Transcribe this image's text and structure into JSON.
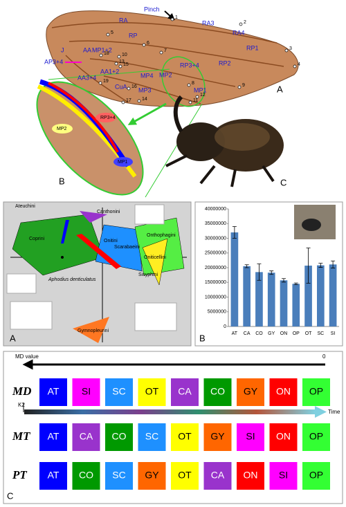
{
  "figure": {
    "wing_panel": {
      "panel_labels": [
        "A",
        "B",
        "C"
      ],
      "vein_labels": [
        "Pinch",
        "RA",
        "RA3",
        "RA4",
        "RP",
        "RP1",
        "RP2",
        "RP3+4",
        "MP1+2",
        "MP2",
        "MP4",
        "MP3",
        "MP1",
        "AA",
        "AA1+2",
        "AA3+4",
        "AP3+4",
        "J",
        "CuA"
      ],
      "point_numbers": [
        "1",
        "2",
        "3",
        "4",
        "5",
        "6",
        "7",
        "8",
        "9",
        "10",
        "11",
        "12",
        "13",
        "14",
        "15",
        "16",
        "17",
        "18",
        "19"
      ],
      "zoom_labels": [
        "RP3+4",
        "MP2",
        "MP1"
      ]
    },
    "morphospace": {
      "panel_label": "A",
      "tribes": [
        "Ateuchini",
        "Canthonini",
        "Coprini",
        "Onitini",
        "Scarabaeini",
        "Onthophagini",
        "Oniticellini",
        "Sisyphini",
        "Gymnopleurini"
      ],
      "outgroup": "Aphodius denticulatus"
    },
    "sequences": {
      "axis_label": "MD value",
      "axis_end": "0",
      "k2_label": "K2",
      "time_label": "Time",
      "panel_label": "C",
      "colors": {
        "AT": "#0000ff",
        "SI": "#ff00ff",
        "SC": "#1e90ff",
        "OT": "#ffff00",
        "CA": "#9933cc",
        "CO": "#009900",
        "GY": "#ff6600",
        "ON": "#ff0000",
        "OP": "#33ff33"
      },
      "rows": [
        {
          "name": "MD",
          "items": [
            "AT",
            "SI",
            "SC",
            "OT",
            "CA",
            "CO",
            "GY",
            "ON",
            "OP"
          ]
        },
        {
          "name": "MT",
          "items": [
            "AT",
            "CA",
            "CO",
            "SC",
            "OT",
            "GY",
            "SI",
            "ON",
            "OP"
          ]
        },
        {
          "name": "PT",
          "items": [
            "AT",
            "CO",
            "SC",
            "GY",
            "OT",
            "CA",
            "ON",
            "SI",
            "OP"
          ]
        }
      ]
    }
  },
  "chart_data": {
    "type": "bar",
    "panel_label": "B",
    "categories": [
      "AT",
      "CA",
      "CO",
      "GY",
      "ON",
      "OP",
      "OT",
      "SC",
      "SI"
    ],
    "values": [
      32000000,
      20500000,
      18500000,
      18300000,
      15700000,
      14500000,
      20700000,
      20800000,
      21100000
    ],
    "errors": [
      2000000,
      500000,
      2800000,
      600000,
      600000,
      300000,
      6000000,
      700000,
      1200000
    ],
    "color": "#4a7ebb",
    "ylim": [
      0,
      40000000
    ],
    "yticks": [
      0,
      5000000,
      10000000,
      15000000,
      20000000,
      25000000,
      30000000,
      35000000,
      40000000
    ],
    "grid": false
  }
}
